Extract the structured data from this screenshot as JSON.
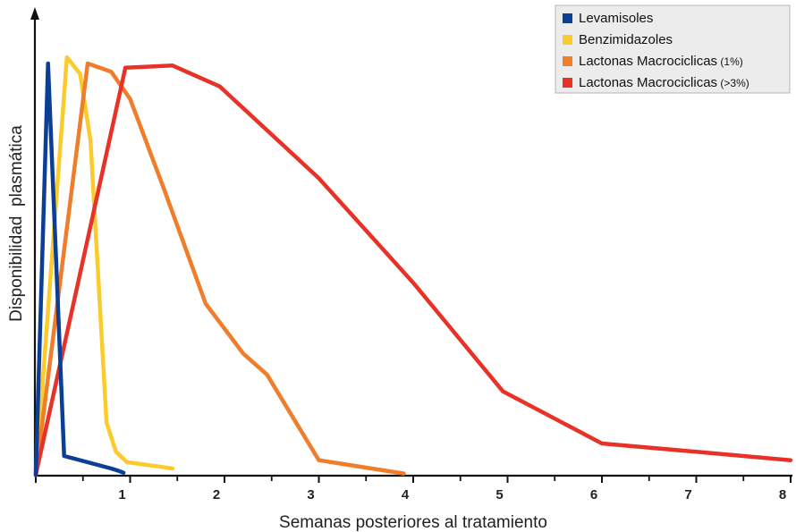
{
  "chart_data": {
    "type": "line",
    "xlabel": "Semanas posteriores al tratamiento",
    "ylabel": "Disponibilidad  plasmática",
    "xlim": [
      0,
      8
    ],
    "ylim": [
      0,
      100
    ],
    "x_ticks": [
      1,
      2,
      3,
      4,
      5,
      6,
      7,
      8
    ],
    "grid": false,
    "legend_position": "top-right",
    "series": [
      {
        "name": "Levamisoles",
        "legend_main": "Levamisoles",
        "legend_note": "",
        "color": "#0b3f96",
        "points": [
          [
            0,
            0
          ],
          [
            0.13,
            98.5
          ],
          [
            0.3,
            4.5
          ],
          [
            0.8,
            1.5
          ],
          [
            0.87,
            1.0
          ],
          [
            0.93,
            0.5
          ]
        ]
      },
      {
        "name": "Benzimidazoles",
        "legend_main": "Benzimidazoles",
        "legend_note": "",
        "color": "#fbcb2c",
        "points": [
          [
            0,
            0
          ],
          [
            0.33,
            100
          ],
          [
            0.47,
            96
          ],
          [
            0.58,
            80
          ],
          [
            0.75,
            12.5
          ],
          [
            0.85,
            5.5
          ],
          [
            0.97,
            3
          ],
          [
            1.3,
            2
          ],
          [
            1.45,
            1.5
          ]
        ]
      },
      {
        "name": "Lactonas Macrociclicas (1%)",
        "legend_main": "Lactonas Macrociclicas",
        "legend_note": " (1%)",
        "color": "#ef7d2a",
        "points": [
          [
            0,
            0
          ],
          [
            0.55,
            98.5
          ],
          [
            0.8,
            96.5
          ],
          [
            1.0,
            90
          ],
          [
            1.35,
            69
          ],
          [
            1.8,
            41
          ],
          [
            2.2,
            29
          ],
          [
            2.45,
            24
          ],
          [
            3.0,
            3.5
          ],
          [
            3.9,
            0.3
          ]
        ]
      },
      {
        "name": "Lactonas Macrociclicas (>3%)",
        "legend_main": "Lactonas Macrociclicas",
        "legend_note": " (>3%)",
        "color": "#e83228",
        "points": [
          [
            0,
            0
          ],
          [
            0.95,
            97.5
          ],
          [
            1.45,
            98
          ],
          [
            1.95,
            93
          ],
          [
            3.0,
            71
          ],
          [
            4.0,
            46
          ],
          [
            4.95,
            20
          ],
          [
            6.0,
            7.5
          ],
          [
            7.0,
            5.5
          ],
          [
            8.0,
            3.5
          ]
        ]
      }
    ]
  }
}
